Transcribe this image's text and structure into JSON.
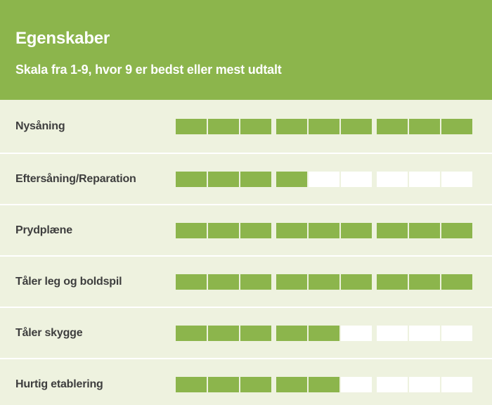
{
  "header": {
    "title": "Egenskaber",
    "subtitle": "Skala fra 1-9, hvor 9 er bedst eller mest udtalt"
  },
  "scale_max": 9,
  "colors": {
    "accent": "#8cb54c",
    "background": "#eef2df",
    "empty_segment": "#ffffff",
    "label_text": "#3e3e3e"
  },
  "properties": [
    {
      "label": "Nysåning",
      "value": 9
    },
    {
      "label": "Eftersåning/Reparation",
      "value": 4
    },
    {
      "label": "Prydplæne",
      "value": 9
    },
    {
      "label": "Tåler leg og boldspil",
      "value": 9
    },
    {
      "label": "Tåler skygge",
      "value": 5
    },
    {
      "label": "Hurtig etablering",
      "value": 5
    }
  ]
}
